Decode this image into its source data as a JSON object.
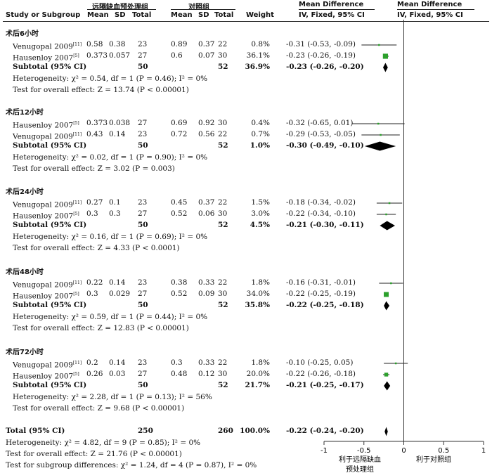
{
  "header": {
    "col_study": "Study or Subgroup",
    "group1": "远隔缺血预处理组",
    "group2": "对照组",
    "mean": "Mean",
    "sd": "SD",
    "total": "Total",
    "weight": "Weight",
    "md1": "Mean Difference",
    "md1_sub": "IV, Fixed, 95% CI",
    "md2": "Mean Difference",
    "md2_sub": "IV, Fixed, 95% CI"
  },
  "chart_data": {
    "type": "forest",
    "xlim": [
      -1,
      1
    ],
    "x_ticks": [
      "-1",
      "-0.5",
      "0",
      "0.5",
      "1"
    ],
    "x_tick_values": [
      -1,
      -0.5,
      0,
      0.5,
      1
    ],
    "left_label": "利于远隔缺血\n预处理组",
    "left_label_lines": [
      "利于远隔缺血",
      "预处理组"
    ],
    "right_label": "利于对照组",
    "colors": {
      "marker": "#2ca02c",
      "diamond": "#000000"
    },
    "groups": [
      {
        "title": "术后6小时",
        "studies": [
          {
            "name": "Venugopal 2009",
            "ref": "[11]",
            "m1": "0.58",
            "sd1": "0.38",
            "n1": "23",
            "m2": "0.89",
            "sd2": "0.37",
            "n2": "22",
            "weight": "0.8%",
            "ci": "-0.31 (-0.53, -0.09)",
            "md": -0.31,
            "lo": -0.53,
            "hi": -0.09,
            "w": 0.8
          },
          {
            "name": "Hausenloy 2007",
            "ref": "[5]",
            "m1": "0.373",
            "sd1": "0.057",
            "n1": "27",
            "m2": "0.6",
            "sd2": "0.07",
            "n2": "30",
            "weight": "36.1%",
            "ci": "-0.23 (-0.26, -0.19)",
            "md": -0.23,
            "lo": -0.26,
            "hi": -0.19,
            "w": 36.1
          }
        ],
        "subtotal": {
          "label": "Subtotal (95% CI)",
          "n1": "50",
          "n2": "52",
          "weight": "36.9%",
          "ci": "-0.23 (-0.26, -0.20)",
          "md": -0.23,
          "lo": -0.26,
          "hi": -0.2
        },
        "heterogeneity": "Heterogeneity: χ² = 0.54, df = 1 (P = 0.46); I² = 0%",
        "overall": "Test for overall effect: Z = 13.74 (P < 0.00001)"
      },
      {
        "title": "术后12小时",
        "studies": [
          {
            "name": "Hausenloy 2007",
            "ref": "[5]",
            "m1": "0.373",
            "sd1": "0.038",
            "n1": "27",
            "m2": "0.69",
            "sd2": "0.92",
            "n2": "30",
            "weight": "0.4%",
            "ci": "-0.32 (-0.65, 0.01)",
            "md": -0.32,
            "lo": -0.65,
            "hi": 0.01,
            "w": 0.4
          },
          {
            "name": "Venugopal 2009",
            "ref": "[11]",
            "m1": "0.43",
            "sd1": "0.14",
            "n1": "23",
            "m2": "0.72",
            "sd2": "0.56",
            "n2": "22",
            "weight": "0.7%",
            "ci": "-0.29 (-0.53, -0.05)",
            "md": -0.29,
            "lo": -0.53,
            "hi": -0.05,
            "w": 0.7
          }
        ],
        "subtotal": {
          "label": "Subtotal (95% CI)",
          "n1": "50",
          "n2": "52",
          "weight": "1.0%",
          "ci": "-0.30 (-0.49, -0.10)",
          "md": -0.3,
          "lo": -0.49,
          "hi": -0.1
        },
        "heterogeneity": "Heterogeneity: χ² = 0.02, df = 1 (P = 0.90); I² = 0%",
        "overall": "Test for overall effect: Z = 3.02 (P = 0.003)"
      },
      {
        "title": "术后24小时",
        "studies": [
          {
            "name": "Venugopal 2009",
            "ref": "[11]",
            "m1": "0.27",
            "sd1": "0.1",
            "n1": "23",
            "m2": "0.45",
            "sd2": "0.37",
            "n2": "22",
            "weight": "1.5%",
            "ci": "-0.18 (-0.34, -0.02)",
            "md": -0.18,
            "lo": -0.34,
            "hi": -0.02,
            "w": 1.5
          },
          {
            "name": "Hausenloy 2007",
            "ref": "[5]",
            "m1": "0.3",
            "sd1": "0.3",
            "n1": "27",
            "m2": "0.52",
            "sd2": "0.06",
            "n2": "30",
            "weight": "3.0%",
            "ci": "-0.22 (-0.34, -0.10)",
            "md": -0.22,
            "lo": -0.34,
            "hi": -0.1,
            "w": 3.0
          }
        ],
        "subtotal": {
          "label": "Subtotal (95% CI)",
          "n1": "50",
          "n2": "52",
          "weight": "4.5%",
          "ci": "-0.21 (-0.30, -0.11)",
          "md": -0.21,
          "lo": -0.3,
          "hi": -0.11
        },
        "heterogeneity": "Heterogeneity: χ² = 0.16, df = 1 (P = 0.69); I² = 0%",
        "overall": "Test for overall effect: Z = 4.33 (P < 0.0001)"
      },
      {
        "title": "术后48小时",
        "studies": [
          {
            "name": "Venugopal 2009",
            "ref": "[11]",
            "m1": "0.22",
            "sd1": "0.14",
            "n1": "23",
            "m2": "0.38",
            "sd2": "0.33",
            "n2": "22",
            "weight": "1.8%",
            "ci": "-0.16 (-0.31, -0.01)",
            "md": -0.16,
            "lo": -0.31,
            "hi": -0.01,
            "w": 1.8
          },
          {
            "name": "Hausenloy 2007",
            "ref": "[5]",
            "m1": "0.3",
            "sd1": "0.029",
            "n1": "27",
            "m2": "0.52",
            "sd2": "0.09",
            "n2": "30",
            "weight": "34.0%",
            "ci": "-0.22 (-0.25, -0.19)",
            "md": -0.22,
            "lo": -0.25,
            "hi": -0.19,
            "w": 34.0
          }
        ],
        "subtotal": {
          "label": "Subtotal (95% CI)",
          "n1": "50",
          "n2": "52",
          "weight": "35.8%",
          "ci": "-0.22 (-0.25, -0.18)",
          "md": -0.22,
          "lo": -0.25,
          "hi": -0.18
        },
        "heterogeneity": "Heterogeneity: χ² = 0.59, df = 1 (P = 0.44); I² = 0%",
        "overall": "Test for overall effect: Z = 12.83 (P < 0.00001)"
      },
      {
        "title": "术后72小时",
        "studies": [
          {
            "name": "Venugopal 2009",
            "ref": "[11]",
            "m1": "0.2",
            "sd1": "0.14",
            "n1": "23",
            "m2": "0.3",
            "sd2": "0.33",
            "n2": "22",
            "weight": "1.8%",
            "ci": "-0.10 (-0.25, 0.05)",
            "md": -0.1,
            "lo": -0.25,
            "hi": 0.05,
            "w": 1.8
          },
          {
            "name": "Hausenloy 2007",
            "ref": "[5]",
            "m1": "0.26",
            "sd1": "0.03",
            "n1": "27",
            "m2": "0.48",
            "sd2": "0.12",
            "n2": "30",
            "weight": "20.0%",
            "ci": "-0.22 (-0.26, -0.18)",
            "md": -0.22,
            "lo": -0.26,
            "hi": -0.18,
            "w": 20.0
          }
        ],
        "subtotal": {
          "label": "Subtotal (95% CI)",
          "n1": "50",
          "n2": "52",
          "weight": "21.7%",
          "ci": "-0.21 (-0.25, -0.17)",
          "md": -0.21,
          "lo": -0.25,
          "hi": -0.17
        },
        "heterogeneity": "Heterogeneity: χ² = 2.28, df = 1 (P = 0.13); I² = 56%",
        "overall": "Test for overall effect: Z = 9.68 (P < 0.00001)"
      }
    ],
    "total": {
      "label": "Total (95% CI)",
      "n1": "250",
      "n2": "260",
      "weight": "100.0%",
      "ci": "-0.22 (-0.24, -0.20)",
      "md": -0.22,
      "lo": -0.24,
      "hi": -0.2
    },
    "footer": [
      "Heterogeneity: χ² = 4.82, df = 9 (P = 0.85); I² = 0%",
      "Test for overall effect: Z = 21.76 (P < 0.00001)",
      "Test for subgroup differences: χ² = 1.24, df = 4 (P = 0.87), I² = 0%"
    ]
  }
}
